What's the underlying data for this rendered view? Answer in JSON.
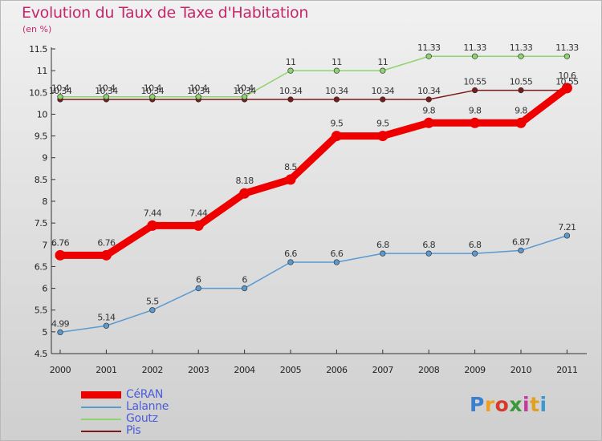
{
  "chart_data": {
    "type": "line",
    "title": "Evolution du Taux de Taxe d'Habitation",
    "subtitle": "(en %)",
    "x": [
      "2000",
      "2001",
      "2002",
      "2003",
      "2004",
      "2005",
      "2006",
      "2007",
      "2008",
      "2009",
      "2010",
      "2011"
    ],
    "ylim": [
      4.5,
      11.5
    ],
    "yticks": [
      "4.5",
      "5",
      "5.5",
      "6",
      "6.5",
      "7",
      "7.5",
      "8",
      "8.5",
      "9",
      "9.5",
      "10",
      "10.5",
      "11",
      "11.5"
    ],
    "grid": false,
    "legend_position": "bottom-left",
    "series": [
      {
        "name": "Pis",
        "color": "#7a1a1a",
        "values": [
          10.34,
          10.34,
          10.34,
          10.34,
          10.34,
          10.34,
          10.34,
          10.34,
          10.34,
          10.55,
          10.55,
          10.55
        ],
        "labels": [
          "10.34",
          "10.34",
          "10.34",
          "10.34",
          "10.34",
          "10.34",
          "10.34",
          "10.34",
          "10.34",
          "10.55",
          "10.55",
          "10.55"
        ]
      },
      {
        "name": "Goutz",
        "color": "#8ed46e",
        "values": [
          10.4,
          10.4,
          10.4,
          10.4,
          10.4,
          11,
          11,
          11,
          11.33,
          11.33,
          11.33,
          11.33
        ],
        "labels": [
          "10.4",
          "10.4",
          "10.4",
          "10.4",
          "10.4",
          "11",
          "11",
          "11",
          "11.33",
          "11.33",
          "11.33",
          "11.33"
        ]
      },
      {
        "name": "Lalanne",
        "color": "#5a9ad0",
        "values": [
          4.99,
          5.14,
          5.5,
          6,
          6,
          6.6,
          6.6,
          6.8,
          6.8,
          6.8,
          6.87,
          7.21
        ],
        "labels": [
          "4.99",
          "5.14",
          "5.5",
          "6",
          "6",
          "6.6",
          "6.6",
          "6.8",
          "6.8",
          "6.8",
          "6.87",
          "7.21"
        ]
      },
      {
        "name": "CéRAN",
        "color": "#ee0000",
        "values": [
          6.76,
          6.76,
          7.44,
          7.44,
          8.18,
          8.5,
          9.5,
          9.5,
          9.8,
          9.8,
          9.8,
          10.6
        ],
        "labels": [
          "6.76",
          "6.76",
          "7.44",
          "7.44",
          "8.18",
          "8.5",
          "9.5",
          "9.5",
          "9.8",
          "9.8",
          "9.8",
          "10.6"
        ]
      }
    ],
    "legend": [
      {
        "name": "CéRAN",
        "color": "#ee0000"
      },
      {
        "name": "Lalanne",
        "color": "#5a9ad0"
      },
      {
        "name": "Goutz",
        "color": "#8ed46e"
      },
      {
        "name": "Pis",
        "color": "#7a1a1a"
      }
    ]
  },
  "logo": {
    "text": "Proxiti",
    "colors": [
      "#3a7fd0",
      "#f0a020",
      "#d83a2a",
      "#3a9a3a",
      "#c83a9a",
      "#e0a020",
      "#3a9ad0"
    ]
  }
}
